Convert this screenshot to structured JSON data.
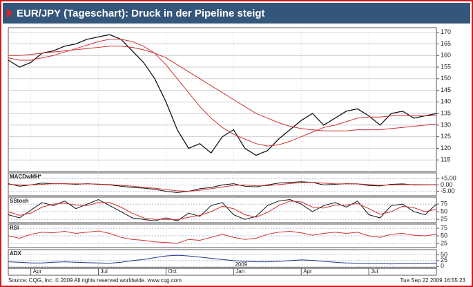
{
  "header": {
    "title": "EUR/JPY (Tageschart): Druck in der Pipeline steigt"
  },
  "footer": {
    "source": "Source: CQG, Inc. © 2009 All rights reserved worldwide. www.cqg.com",
    "timestamp": "Tue Sep 22 2009 16:55:23"
  },
  "chart_data": [
    {
      "type": "line",
      "annotation": "2009",
      "categories": [
        null,
        null,
        "Apr",
        null,
        null,
        null,
        null,
        null,
        "Jul",
        null,
        null,
        null,
        null,
        null,
        "Oct",
        null,
        null,
        null,
        null,
        null,
        "Jan",
        null,
        null,
        null,
        null,
        null,
        "Apr",
        null,
        null,
        null,
        null,
        null,
        "Jul",
        null,
        null,
        null,
        null,
        null,
        null
      ],
      "ylim": [
        110,
        172
      ],
      "yticks": [
        115,
        120,
        125,
        130,
        135,
        140,
        145,
        150,
        155,
        160,
        165,
        170
      ],
      "grid": true,
      "series": [
        {
          "color": "#111111",
          "values": [
            158,
            155,
            157,
            161,
            162,
            164,
            165,
            167,
            168,
            169,
            167,
            162,
            157,
            150,
            140,
            128,
            120,
            122,
            118,
            125,
            128,
            120,
            117,
            119,
            124,
            128,
            132,
            135,
            130,
            133,
            136,
            137,
            134,
            130,
            135,
            136,
            133,
            134,
            135
          ]
        },
        {
          "color": "#d03030",
          "values": [
            160,
            160,
            160.5,
            161,
            161.5,
            162,
            162.5,
            163,
            163.5,
            164,
            164,
            163.5,
            162.5,
            161,
            159,
            156,
            153,
            150,
            147,
            144,
            141,
            138,
            135,
            133,
            131,
            129.5,
            128.5,
            128,
            127.5,
            127.5,
            127.5,
            128,
            128,
            128,
            128.5,
            129,
            129.5,
            130,
            130.5
          ]
        },
        {
          "color": "#d03030",
          "values": [
            159,
            158,
            158,
            159,
            160,
            161.5,
            163,
            164.5,
            166,
            167,
            167,
            166,
            164,
            161,
            156,
            150,
            144,
            138,
            133,
            129,
            126,
            124,
            122,
            121,
            121.5,
            123,
            125,
            127,
            129,
            130,
            131.5,
            133,
            133.5,
            133.5,
            134,
            134,
            134,
            134,
            134
          ]
        }
      ]
    },
    {
      "type": "line",
      "title": "MACDwMH*",
      "ylim": [
        -8.5,
        9.5
      ],
      "yticks": [
        {
          "value": 5,
          "label": "+5.00"
        },
        {
          "value": 0,
          "label": "0.00"
        },
        {
          "value": -5,
          "label": "-5.00"
        }
      ],
      "grid": true,
      "series": [
        {
          "color": "#111111",
          "values": [
            1,
            -1,
            0,
            1.5,
            1,
            1,
            0.5,
            1,
            0.5,
            0,
            -1,
            -2,
            -2.5,
            -3.5,
            -5,
            -6,
            -5,
            -3,
            -2,
            0,
            1,
            -1,
            -1.5,
            0,
            1.5,
            2,
            2.5,
            2,
            0,
            0.5,
            1,
            0.8,
            -0.5,
            -0.8,
            0.5,
            0.8,
            0,
            0,
            0.3
          ]
        },
        {
          "color": "#d03030",
          "values": [
            0.5,
            0,
            0,
            0.5,
            1,
            1,
            0.8,
            0.8,
            0.6,
            0.3,
            -0.3,
            -1,
            -1.8,
            -2.6,
            -3.6,
            -4.6,
            -5,
            -4.2,
            -3,
            -1.6,
            -0.3,
            0,
            -0.7,
            -0.6,
            0.3,
            1.1,
            1.8,
            2.1,
            1.4,
            0.9,
            0.8,
            0.8,
            0.3,
            -0.3,
            0,
            0.4,
            0.3,
            0.2,
            0.2
          ]
        }
      ]
    },
    {
      "type": "line",
      "title": "SStoch",
      "ylim": [
        14,
        98
      ],
      "yticks": [
        75,
        50,
        25
      ],
      "grid": true,
      "series": [
        {
          "color": "#111111",
          "values": [
            40,
            30,
            55,
            80,
            70,
            85,
            60,
            75,
            90,
            70,
            50,
            30,
            25,
            20,
            30,
            20,
            45,
            35,
            70,
            80,
            40,
            25,
            35,
            70,
            85,
            90,
            75,
            50,
            70,
            80,
            65,
            85,
            40,
            30,
            70,
            75,
            50,
            40,
            75
          ]
        },
        {
          "color": "#d03030",
          "values": [
            50,
            38,
            45,
            65,
            75,
            78,
            72,
            70,
            80,
            80,
            65,
            45,
            30,
            25,
            25,
            24,
            32,
            38,
            50,
            68,
            60,
            40,
            32,
            48,
            70,
            85,
            82,
            65,
            62,
            72,
            72,
            77,
            60,
            42,
            50,
            68,
            63,
            50,
            58
          ]
        }
      ]
    },
    {
      "type": "line",
      "title": "RSI",
      "ylim": [
        11,
        89
      ],
      "yticks": [
        75,
        50,
        25
      ],
      "grid": true,
      "series": [
        {
          "color": "#d03030",
          "values": [
            50,
            42,
            55,
            62,
            60,
            65,
            58,
            62,
            66,
            58,
            45,
            38,
            35,
            30,
            28,
            25,
            38,
            35,
            45,
            55,
            45,
            38,
            42,
            55,
            62,
            65,
            60,
            52,
            58,
            62,
            58,
            62,
            50,
            45,
            55,
            58,
            52,
            50,
            55
          ]
        }
      ]
    },
    {
      "type": "line",
      "title": "ADX",
      "ylim": [
        -5,
        72
      ],
      "yticks": [
        50,
        25,
        0
      ],
      "grid": true,
      "series": [
        {
          "color": "#223388",
          "values": [
            20,
            18,
            15,
            15,
            18,
            20,
            18,
            16,
            15,
            14,
            18,
            25,
            30,
            38,
            45,
            48,
            45,
            40,
            35,
            30,
            25,
            22,
            20,
            20,
            22,
            25,
            28,
            26,
            22,
            18,
            15,
            14,
            13,
            12,
            11,
            12,
            12,
            13,
            14
          ]
        }
      ]
    }
  ]
}
